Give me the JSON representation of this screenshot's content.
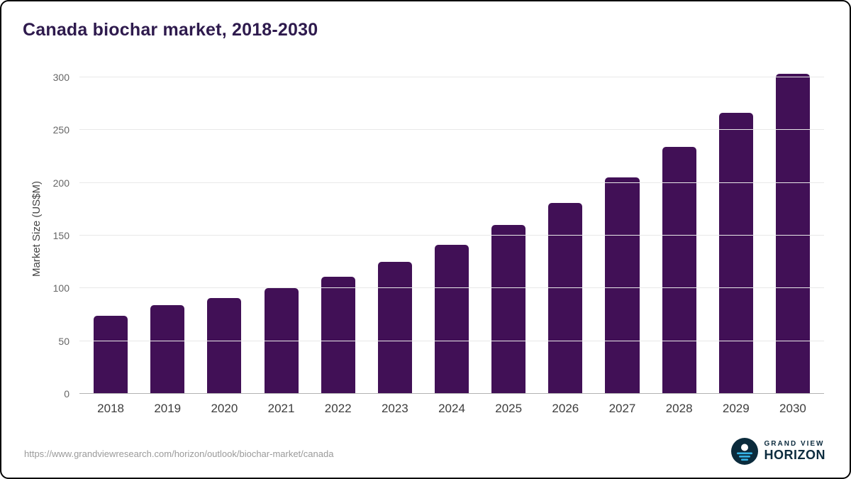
{
  "chart_data": {
    "type": "bar",
    "title": "Canada biochar market, 2018-2030",
    "categories": [
      "2018",
      "2019",
      "2020",
      "2021",
      "2022",
      "2023",
      "2024",
      "2025",
      "2026",
      "2027",
      "2028",
      "2029",
      "2030"
    ],
    "values": [
      74,
      84,
      91,
      100,
      111,
      125,
      141,
      160,
      181,
      205,
      234,
      266,
      303
    ],
    "xlabel": "",
    "ylabel": "Market Size (US$M)",
    "ylim": [
      0,
      310
    ],
    "yticks": [
      0,
      50,
      100,
      150,
      200,
      250,
      300
    ],
    "grid": true,
    "legend_position": "none",
    "bar_color": "#411056"
  },
  "footer": {
    "source_url": "https://www.grandviewresearch.com/horizon/outlook/biochar-market/canada",
    "brand_line1": "GRAND VIEW",
    "brand_line2": "HORIZON"
  },
  "colors": {
    "bar": "#411056",
    "title_text": "#2e1a4d",
    "axis_text": "#666666",
    "x_label_text": "#3d3d3d",
    "gridline": "#e8e8e8",
    "baseline": "#b3b3b3",
    "source_text": "#9a9a9a",
    "logo_navy": "#0b2b3c",
    "logo_cyan": "#35b4e6"
  }
}
